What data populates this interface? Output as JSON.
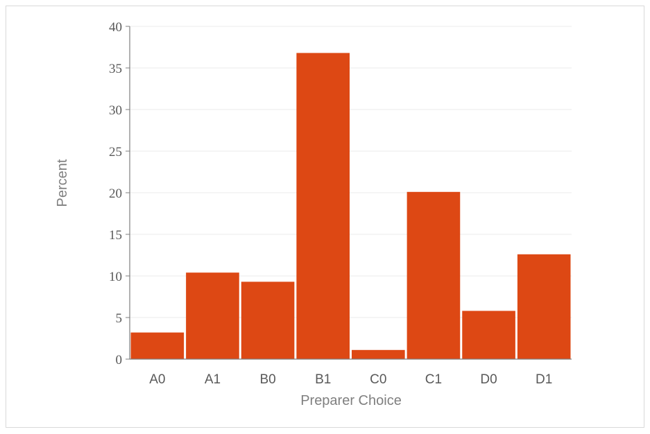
{
  "chart_data": {
    "type": "bar",
    "title": "",
    "xlabel": "Preparer Choice",
    "ylabel": "Percent",
    "categories": [
      "A0",
      "A1",
      "B0",
      "B1",
      "C0",
      "C1",
      "D0",
      "D1"
    ],
    "values": [
      3.2,
      10.4,
      9.3,
      36.8,
      1.1,
      20.1,
      5.8,
      12.6
    ],
    "ylim": [
      0,
      40
    ],
    "yticks": [
      0,
      5,
      10,
      15,
      20,
      25,
      30,
      35,
      40
    ],
    "grid": true,
    "legend": "none",
    "bar_color": "#DD4814",
    "grid_color": "#EBEBEB",
    "axis_color": "#7F7F7F",
    "frame_color": "#D9D9D9"
  }
}
